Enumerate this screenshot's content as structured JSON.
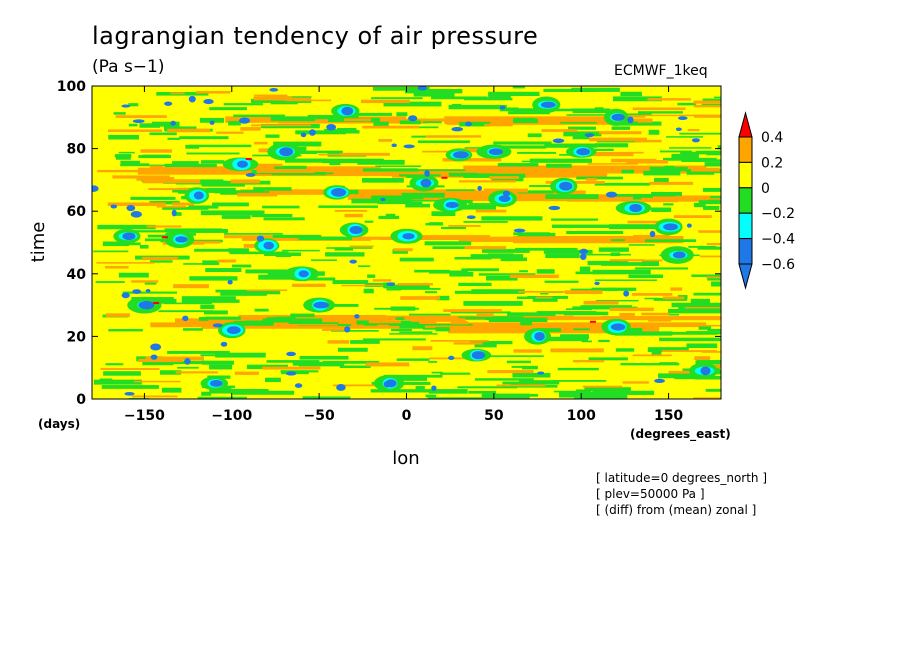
{
  "chart_data": {
    "type": "heatmap",
    "title": "lagrangian tendency of air pressure",
    "units": "(Pa s−1)",
    "source_label": "ECMWF_1keq",
    "xlabel": "lon",
    "ylabel": "time",
    "x_unit_label": "(degrees_east)",
    "y_unit_label": "(days)",
    "xlim": [
      -180,
      180
    ],
    "ylim": [
      0,
      100
    ],
    "x_ticks": [
      -150,
      -100,
      -50,
      0,
      50,
      100,
      150
    ],
    "x_tick_labels": [
      "−150",
      "−100",
      "−50",
      "0",
      "50",
      "100",
      "150"
    ],
    "y_ticks": [
      0,
      20,
      40,
      60,
      80,
      100
    ],
    "y_tick_labels": [
      "0",
      "20",
      "40",
      "60",
      "80",
      "100"
    ],
    "colorbar": {
      "levels": [
        -0.6,
        -0.4,
        -0.2,
        0,
        0.2,
        0.4
      ],
      "level_labels": [
        "−0.6",
        "−0.4",
        "−0.2",
        "0",
        "0.2",
        "0.4"
      ],
      "colors": [
        "#1e78e6",
        "#00ffff",
        "#22dd22",
        "#ffff00",
        "#ffa500",
        "#ff0000"
      ],
      "extend": "both"
    },
    "background_color": "#ffff00",
    "bands": [
      {
        "y": 24,
        "level": "orange"
      },
      {
        "y": 26,
        "level": "orange"
      },
      {
        "y": 52,
        "level": "orange"
      },
      {
        "y": 66,
        "level": "orange"
      },
      {
        "y": 74,
        "level": "orange"
      },
      {
        "y": 90,
        "level": "orange"
      }
    ],
    "blobs": [
      {
        "lon": -160,
        "day": 52,
        "v": -0.6
      },
      {
        "lon": -130,
        "day": 51,
        "v": -0.6
      },
      {
        "lon": -95,
        "day": 75,
        "v": -0.6
      },
      {
        "lon": -80,
        "day": 49,
        "v": -0.6
      },
      {
        "lon": -70,
        "day": 79,
        "v": -0.6
      },
      {
        "lon": -40,
        "day": 66,
        "v": -0.6
      },
      {
        "lon": -35,
        "day": 92,
        "v": -0.6
      },
      {
        "lon": -30,
        "day": 54,
        "v": -0.6
      },
      {
        "lon": -10,
        "day": 5,
        "v": -0.6
      },
      {
        "lon": 0,
        "day": 52,
        "v": -0.6
      },
      {
        "lon": 10,
        "day": 69,
        "v": -0.6
      },
      {
        "lon": 25,
        "day": 62,
        "v": -0.6
      },
      {
        "lon": 30,
        "day": 78,
        "v": -0.6
      },
      {
        "lon": 50,
        "day": 79,
        "v": -0.6
      },
      {
        "lon": 55,
        "day": 64,
        "v": -0.6
      },
      {
        "lon": 80,
        "day": 94,
        "v": -0.6
      },
      {
        "lon": 90,
        "day": 68,
        "v": -0.6
      },
      {
        "lon": 100,
        "day": 79,
        "v": -0.6
      },
      {
        "lon": 120,
        "day": 23,
        "v": -0.6
      },
      {
        "lon": 130,
        "day": 61,
        "v": -0.6
      },
      {
        "lon": 150,
        "day": 55,
        "v": -0.6
      },
      {
        "lon": 155,
        "day": 46,
        "v": -0.6
      },
      {
        "lon": -110,
        "day": 5,
        "v": -0.6
      },
      {
        "lon": -100,
        "day": 22,
        "v": -0.6
      },
      {
        "lon": 40,
        "day": 14,
        "v": -0.6
      },
      {
        "lon": 170,
        "day": 9,
        "v": -0.6
      },
      {
        "lon": -150,
        "day": 30,
        "v": -0.6
      },
      {
        "lon": -50,
        "day": 30,
        "v": -0.6
      },
      {
        "lon": 75,
        "day": 20,
        "v": -0.6
      },
      {
        "lon": -120,
        "day": 65,
        "v": -0.6
      },
      {
        "lon": 120,
        "day": 90,
        "v": -0.6
      },
      {
        "lon": -60,
        "day": 40,
        "v": -0.6
      }
    ],
    "red_spots": [
      {
        "lon": -92,
        "day": 77
      },
      {
        "lon": -140,
        "day": 52
      },
      {
        "lon": 20,
        "day": 71
      },
      {
        "lon": 105,
        "day": 25
      },
      {
        "lon": -145,
        "day": 31
      }
    ]
  },
  "notes": [
    "[ latitude=0 degrees_north ]",
    "[ plev=50000 Pa ]",
    "[ (diff) from (mean) zonal ]"
  ]
}
